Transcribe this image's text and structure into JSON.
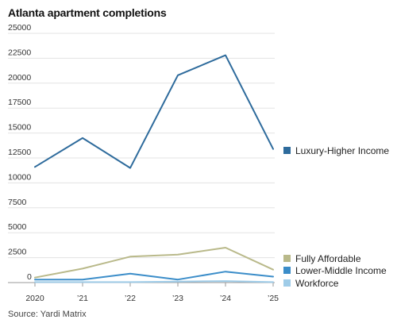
{
  "title": "Atlanta apartment completions",
  "source": "Source: Yardi Matrix",
  "chart_data": {
    "type": "line",
    "title": "Atlanta apartment completions",
    "x": [
      "2020",
      "’21",
      "’22",
      "’23",
      "’24",
      "’25"
    ],
    "xlabel": "",
    "ylabel": "",
    "ylim": [
      0,
      25000
    ],
    "yticks": [
      "25000",
      "22500",
      "20000",
      "17500",
      "15000",
      "12500",
      "10000",
      "7500",
      "5000",
      "2500",
      "0"
    ],
    "grid": true,
    "legend_placement": "right, at line ends",
    "series": [
      {
        "name": "Luxury-Higher Income",
        "color": "#2e6b9c",
        "values": [
          11600,
          14500,
          11500,
          20800,
          22800,
          13400
        ]
      },
      {
        "name": "Fully Affordable",
        "color": "#b9b98a",
        "values": [
          500,
          1400,
          2600,
          2800,
          3500,
          1300
        ]
      },
      {
        "name": "Lower-Middle Income",
        "color": "#3b8dc9",
        "values": [
          300,
          300,
          900,
          300,
          1100,
          600
        ]
      },
      {
        "name": "Workforce",
        "color": "#9fcce8",
        "values": [
          50,
          50,
          50,
          100,
          150,
          50
        ]
      }
    ]
  }
}
